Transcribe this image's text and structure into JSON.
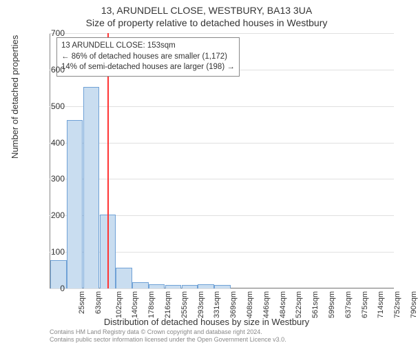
{
  "title": {
    "line1": "13, ARUNDELL CLOSE, WESTBURY, BA13 3UA",
    "line2": "Size of property relative to detached houses in Westbury",
    "fontsize": 14,
    "color": "#333333"
  },
  "chart": {
    "type": "histogram",
    "background_color": "#ffffff",
    "grid_color": "#e0e0e0",
    "axis_color": "#888888",
    "ylim": [
      0,
      700
    ],
    "ytick_step": 100,
    "yticks": [
      0,
      100,
      200,
      300,
      400,
      500,
      600,
      700
    ],
    "xticks": [
      "25sqm",
      "63sqm",
      "102sqm",
      "140sqm",
      "178sqm",
      "216sqm",
      "255sqm",
      "293sqm",
      "331sqm",
      "369sqm",
      "408sqm",
      "446sqm",
      "484sqm",
      "522sqm",
      "561sqm",
      "599sqm",
      "637sqm",
      "675sqm",
      "714sqm",
      "752sqm",
      "790sqm"
    ],
    "bar_color": "#c9ddf0",
    "bar_border_color": "#6fa1d6",
    "bar_width": 0.9,
    "values": [
      75,
      460,
      550,
      200,
      55,
      15,
      10,
      8,
      8,
      10,
      8,
      0,
      0,
      0,
      0,
      0,
      0,
      0,
      0,
      0,
      0
    ],
    "marker": {
      "x_sqm": 153,
      "color": "#ff3333",
      "width": 2
    },
    "annotation": {
      "lines": [
        "13 ARUNDELL CLOSE: 153sqm",
        "← 86% of detached houses are smaller (1,172)",
        "14% of semi-detached houses are larger (198) →"
      ],
      "border_color": "#888888",
      "background_color": "#ffffff",
      "fontsize": 11.5
    },
    "ylabel": "Number of detached properties",
    "xlabel": "Distribution of detached houses by size in Westbury",
    "label_fontsize": 13,
    "tick_fontsize": 12
  },
  "footer": {
    "line1": "Contains HM Land Registry data © Crown copyright and database right 2024.",
    "line2": "Contains public sector information licensed under the Open Government Licence v3.0.",
    "fontsize": 9,
    "color": "#888888"
  }
}
